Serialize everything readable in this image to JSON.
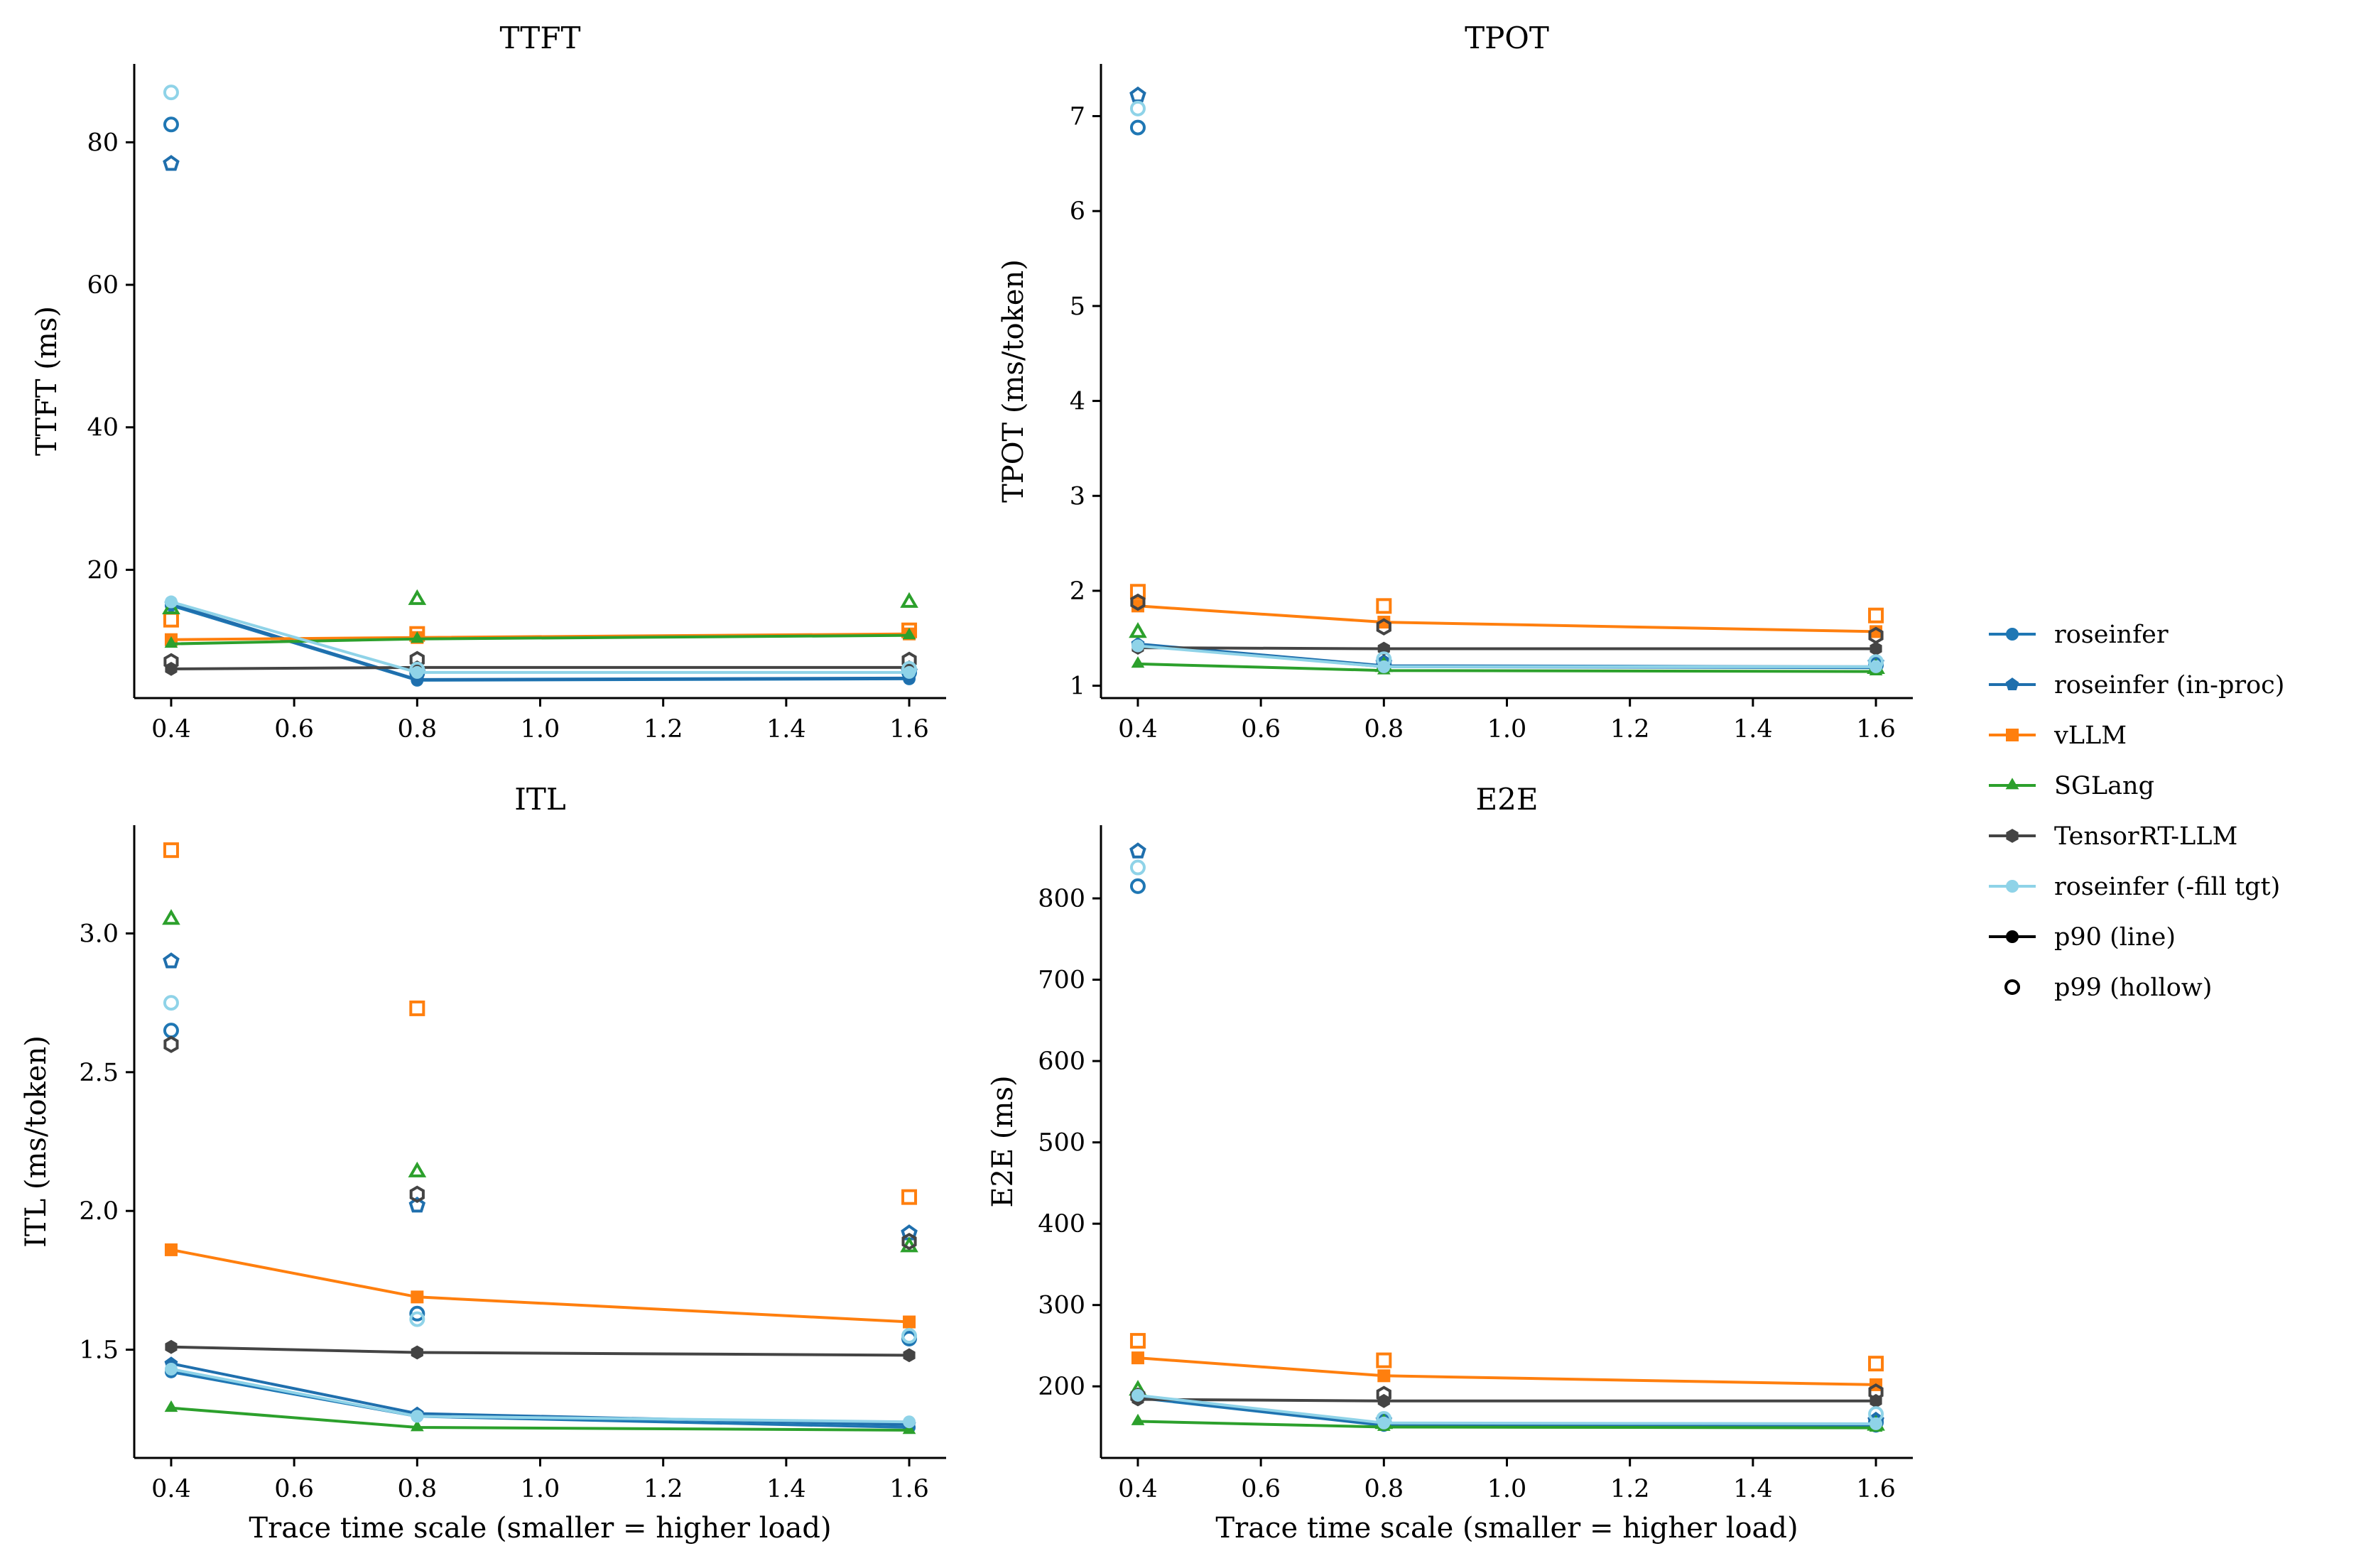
{
  "chart_data": [
    {
      "type": "line",
      "title": "TTFT",
      "xlabel": "",
      "ylabel": "TTFT (ms)",
      "xlim": [
        0.34,
        1.66
      ],
      "ylim": [
        2.0,
        91.0
      ],
      "xticks": [
        "0.4",
        "0.6",
        "0.8",
        "1.0",
        "1.2",
        "1.4",
        "1.6"
      ],
      "yticks": [
        "20",
        "40",
        "60",
        "80"
      ],
      "x": [
        0.4,
        0.8,
        1.6
      ],
      "series": [
        {
          "name": "roseinfer",
          "p90": [
            15.0,
            4.5,
            4.7
          ],
          "p99": [
            82.5,
            5.5,
            5.6
          ]
        },
        {
          "name": "roseinfer (in-proc)",
          "p90": [
            15.2,
            4.6,
            4.8
          ],
          "p99": [
            77.0,
            5.6,
            5.7
          ]
        },
        {
          "name": "vLLM",
          "p90": [
            10.2,
            10.5,
            11.0
          ],
          "p99": [
            13.0,
            11.0,
            11.5
          ]
        },
        {
          "name": "SGLang",
          "p90": [
            9.6,
            10.3,
            10.8
          ],
          "p99": [
            14.5,
            15.8,
            15.4
          ]
        },
        {
          "name": "TensorRT-LLM",
          "p90": [
            6.1,
            6.3,
            6.3
          ],
          "p99": [
            7.1,
            7.4,
            7.3
          ]
        },
        {
          "name": "roseinfer (-fill tgt)",
          "p90": [
            15.5,
            5.6,
            5.6
          ],
          "p99": [
            87.0,
            6.0,
            6.1
          ]
        }
      ]
    },
    {
      "type": "line",
      "title": "TPOT",
      "xlabel": "",
      "ylabel": "TPOT (ms/token)",
      "xlim": [
        0.34,
        1.66
      ],
      "ylim": [
        0.87,
        7.55
      ],
      "xticks": [
        "0.4",
        "0.6",
        "0.8",
        "1.0",
        "1.2",
        "1.4",
        "1.6"
      ],
      "yticks": [
        "1",
        "2",
        "3",
        "4",
        "5",
        "6",
        "7"
      ],
      "x": [
        0.4,
        0.8,
        1.6
      ],
      "series": [
        {
          "name": "roseinfer",
          "p90": [
            1.43,
            1.2,
            1.19
          ],
          "p99": [
            6.88,
            1.22,
            1.22
          ]
        },
        {
          "name": "roseinfer (in-proc)",
          "p90": [
            1.44,
            1.21,
            1.2
          ],
          "p99": [
            7.22,
            1.24,
            1.24
          ]
        },
        {
          "name": "vLLM",
          "p90": [
            1.84,
            1.67,
            1.57
          ],
          "p99": [
            1.99,
            1.84,
            1.74
          ]
        },
        {
          "name": "SGLang",
          "p90": [
            1.23,
            1.16,
            1.15
          ],
          "p99": [
            1.56,
            1.2,
            1.18
          ]
        },
        {
          "name": "TensorRT-LLM",
          "p90": [
            1.4,
            1.39,
            1.39
          ],
          "p99": [
            1.88,
            1.62,
            1.53
          ]
        },
        {
          "name": "roseinfer (-fill tgt)",
          "p90": [
            1.42,
            1.2,
            1.2
          ],
          "p99": [
            7.08,
            1.28,
            1.25
          ]
        }
      ]
    },
    {
      "type": "line",
      "title": "ITL",
      "xlabel": "Trace time scale (smaller = higher load)",
      "ylabel": "ITL (ms/token)",
      "xlim": [
        0.34,
        1.66
      ],
      "ylim": [
        1.11,
        3.39
      ],
      "xticks": [
        "0.4",
        "0.6",
        "0.8",
        "1.0",
        "1.2",
        "1.4",
        "1.6"
      ],
      "yticks": [
        "1.5",
        "2.0",
        "2.5",
        "3.0"
      ],
      "x": [
        0.4,
        0.8,
        1.6
      ],
      "series": [
        {
          "name": "roseinfer",
          "p90": [
            1.42,
            1.26,
            1.22
          ],
          "p99": [
            2.65,
            1.63,
            1.54
          ]
        },
        {
          "name": "roseinfer (in-proc)",
          "p90": [
            1.45,
            1.27,
            1.23
          ],
          "p99": [
            2.9,
            2.02,
            1.92
          ]
        },
        {
          "name": "vLLM",
          "p90": [
            1.86,
            1.69,
            1.6
          ],
          "p99": [
            3.3,
            2.73,
            2.05
          ]
        },
        {
          "name": "SGLang",
          "p90": [
            1.29,
            1.22,
            1.21
          ],
          "p99": [
            3.05,
            2.14,
            1.87
          ]
        },
        {
          "name": "TensorRT-LLM",
          "p90": [
            1.51,
            1.49,
            1.48
          ],
          "p99": [
            2.6,
            2.06,
            1.89
          ]
        },
        {
          "name": "roseinfer (-fill tgt)",
          "p90": [
            1.43,
            1.26,
            1.24
          ],
          "p99": [
            2.75,
            1.61,
            1.55
          ]
        }
      ]
    },
    {
      "type": "line",
      "title": "E2E",
      "xlabel": "Trace time scale (smaller = higher load)",
      "ylabel": "E2E (ms)",
      "xlim": [
        0.34,
        1.66
      ],
      "ylim": [
        112,
        890
      ],
      "xticks": [
        "0.4",
        "0.6",
        "0.8",
        "1.0",
        "1.2",
        "1.4",
        "1.6"
      ],
      "yticks": [
        "200",
        "300",
        "400",
        "500",
        "600",
        "700",
        "800"
      ],
      "x": [
        0.4,
        0.8,
        1.6
      ],
      "series": [
        {
          "name": "roseinfer",
          "p90": [
            186,
            152,
            151
          ],
          "p99": [
            815,
            156,
            156
          ]
        },
        {
          "name": "roseinfer (in-proc)",
          "p90": [
            188,
            153,
            152
          ],
          "p99": [
            858,
            158,
            158
          ]
        },
        {
          "name": "vLLM",
          "p90": [
            235,
            213,
            202
          ],
          "p99": [
            256,
            232,
            228
          ]
        },
        {
          "name": "SGLang",
          "p90": [
            157,
            150,
            149
          ],
          "p99": [
            195,
            154,
            152
          ]
        },
        {
          "name": "TensorRT-LLM",
          "p90": [
            184,
            182,
            182
          ],
          "p99": [
            188,
            190,
            193
          ]
        },
        {
          "name": "roseinfer (-fill tgt)",
          "p90": [
            189,
            155,
            154
          ],
          "p99": [
            838,
            160,
            166
          ]
        }
      ]
    }
  ],
  "series_styles": [
    {
      "name": "roseinfer",
      "color": "#1f77b4",
      "marker": "circle"
    },
    {
      "name": "roseinfer (in-proc)",
      "color": "#1f6fad",
      "marker": "pentagon"
    },
    {
      "name": "vLLM",
      "color": "#ff7f0e",
      "marker": "square"
    },
    {
      "name": "SGLang",
      "color": "#2ca02c",
      "marker": "triangle"
    },
    {
      "name": "TensorRT-LLM",
      "color": "#444444",
      "marker": "hexagon"
    },
    {
      "name": "roseinfer (-fill tgt)",
      "color": "#8fd3e8",
      "marker": "circle"
    }
  ],
  "legend": {
    "placement": "right",
    "entries": [
      {
        "label": "roseinfer",
        "color": "#1f77b4",
        "marker": "circle",
        "style": "line"
      },
      {
        "label": "roseinfer (in-proc)",
        "color": "#1f6fad",
        "marker": "pentagon",
        "style": "line"
      },
      {
        "label": "vLLM",
        "color": "#ff7f0e",
        "marker": "square",
        "style": "line"
      },
      {
        "label": "SGLang",
        "color": "#2ca02c",
        "marker": "triangle",
        "style": "line"
      },
      {
        "label": "TensorRT-LLM",
        "color": "#444444",
        "marker": "hexagon",
        "style": "line"
      },
      {
        "label": "roseinfer (-fill tgt)",
        "color": "#8fd3e8",
        "marker": "circle",
        "style": "line"
      },
      {
        "label": "p90 (line)",
        "color": "#000000",
        "marker": "circle",
        "style": "line"
      },
      {
        "label": "p99 (hollow)",
        "color": "#000000",
        "marker": "circle",
        "style": "hollow"
      }
    ]
  }
}
